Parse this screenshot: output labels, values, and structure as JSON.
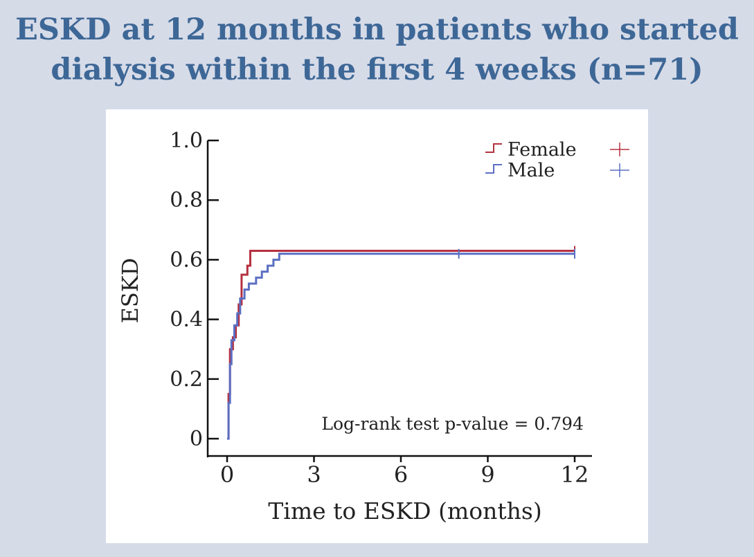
{
  "title": {
    "line1": "ESKD at 12 months in patients who started",
    "line2": "dialysis within the first 4 weeks (n=71)"
  },
  "chart_data": {
    "type": "line",
    "subtype": "kaplan-meier-cumulative-incidence",
    "xlabel": "Time to ESKD (months)",
    "ylabel": "ESKD",
    "xlim": [
      0,
      12
    ],
    "ylim": [
      0,
      1
    ],
    "xticks": [
      0,
      3,
      6,
      9,
      12
    ],
    "xtick_labels": [
      "0",
      "3",
      "6",
      "9",
      "12"
    ],
    "yticks": [
      0,
      0.2,
      0.4,
      0.6,
      0.8,
      1.0
    ],
    "ytick_labels": [
      "0",
      "0.2",
      "0.4",
      "0.6",
      "0.8",
      "1.0"
    ],
    "annotation": "Log-rank test p-value = 0.794",
    "legend_position": "top-right",
    "series": [
      {
        "name": "Female",
        "color": "#b5303f",
        "censor_marks": [
          12
        ],
        "steps": [
          [
            0,
            0
          ],
          [
            0.05,
            0.15
          ],
          [
            0.1,
            0.3
          ],
          [
            0.2,
            0.34
          ],
          [
            0.3,
            0.38
          ],
          [
            0.4,
            0.45
          ],
          [
            0.5,
            0.55
          ],
          [
            0.7,
            0.58
          ],
          [
            0.8,
            0.63
          ],
          [
            12,
            0.63
          ]
        ]
      },
      {
        "name": "Male",
        "color": "#5b6fc2",
        "censor_marks": [
          8,
          12
        ],
        "steps": [
          [
            0,
            0
          ],
          [
            0.05,
            0.12
          ],
          [
            0.1,
            0.25
          ],
          [
            0.15,
            0.33
          ],
          [
            0.25,
            0.38
          ],
          [
            0.35,
            0.42
          ],
          [
            0.45,
            0.47
          ],
          [
            0.6,
            0.5
          ],
          [
            0.75,
            0.52
          ],
          [
            1.0,
            0.54
          ],
          [
            1.2,
            0.56
          ],
          [
            1.4,
            0.58
          ],
          [
            1.6,
            0.6
          ],
          [
            1.8,
            0.62
          ],
          [
            12,
            0.62
          ]
        ]
      }
    ]
  }
}
